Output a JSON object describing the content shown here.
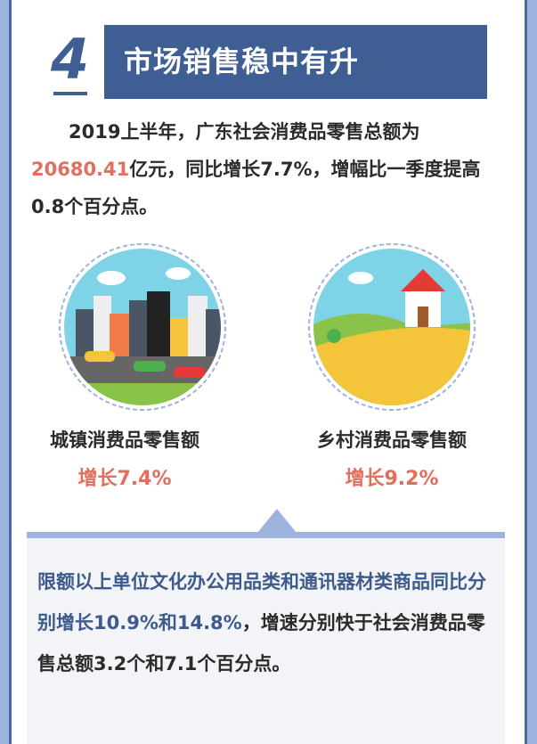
{
  "section": {
    "number": "4",
    "title": "市场销售稳中有升"
  },
  "intro": {
    "line_pre": "2019上半年，广东社会消费品零售总额为",
    "highlight": "20680.41",
    "line_post": "亿元，同比增长7.7%，增幅比一季度提高0.8个百分点。"
  },
  "cards": [
    {
      "label": "城镇消费品零售额",
      "growth": "增长7.4%",
      "icon": "city-illustration"
    },
    {
      "label": "乡村消费品零售额",
      "growth": "增长9.2%",
      "icon": "countryside-illustration"
    }
  ],
  "note": {
    "blue_text": "限额以上单位文化办公用品类和通讯器材类商品同比分别增长10.9%和14.8%",
    "rest_text": "，增速分别快于社会消费品零售总额3.2个和7.1个百分点。"
  },
  "colors": {
    "primary": "#3f5f94",
    "accent": "#e26f5d",
    "light": "#9db3de"
  }
}
